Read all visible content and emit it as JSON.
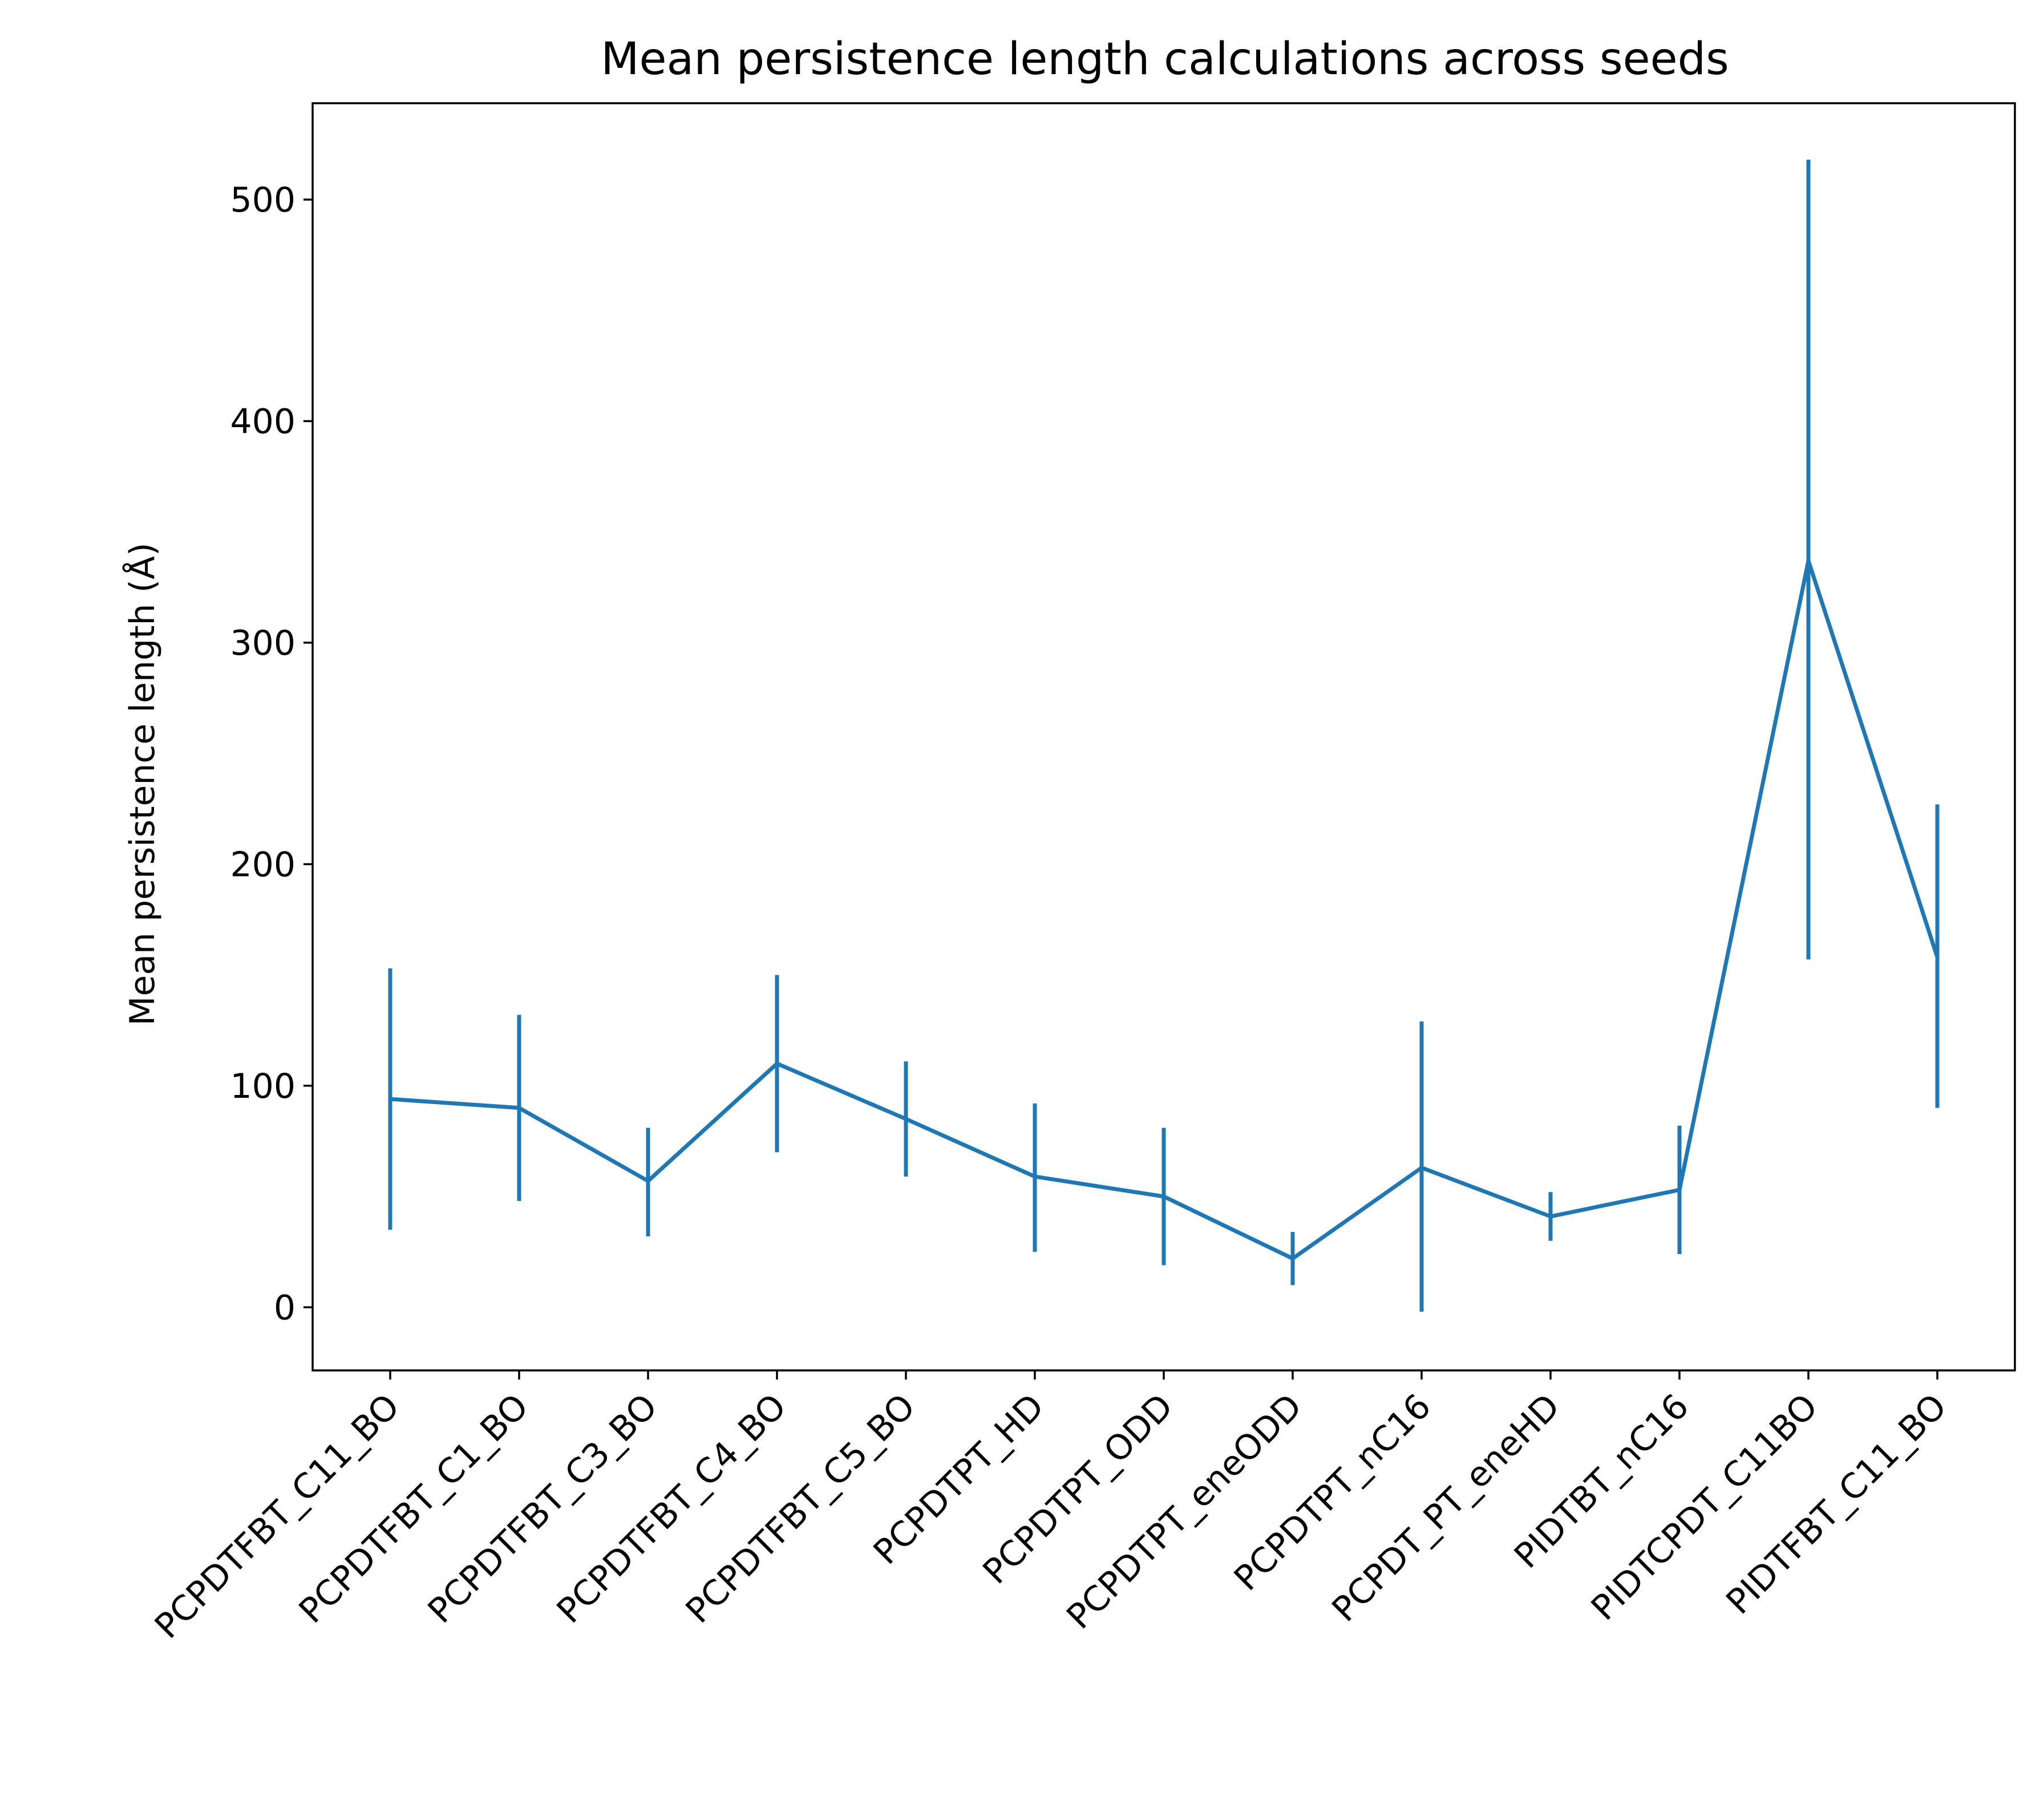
{
  "chart_data": {
    "type": "line",
    "title": "Mean persistence length calculations across seeds",
    "xlabel": "",
    "ylabel": "Mean persistence length (Å)",
    "ylim": [
      -28.5,
      543.5
    ],
    "yticks": [
      0,
      100,
      200,
      300,
      400,
      500
    ],
    "grid": false,
    "legend": "none",
    "line_color": "#1f77b4",
    "categories": [
      "PCPDTFBT_C11_BO",
      "PCPDTFBT_C1_BO",
      "PCPDTFBT_C3_BO",
      "PCPDTFBT_C4_BO",
      "PCPDTFBT_C5_BO",
      "PCPDTPT_HD",
      "PCPDTPT_ODD",
      "PCPDTPT_eneODD",
      "PCPDTPT_nC16",
      "PCPDT_PT_eneHD",
      "PIDTBT_nC16",
      "PIDTCPDT_C11BO",
      "PIDTFBT_C11_BO"
    ],
    "values": [
      94,
      90,
      57,
      110,
      85,
      59,
      50,
      22,
      63,
      41,
      53,
      337,
      158
    ],
    "error_low": [
      35,
      48,
      32,
      70,
      59,
      25,
      19,
      10,
      -2,
      30,
      24,
      157,
      90
    ],
    "error_high": [
      153,
      132,
      81,
      150,
      111,
      92,
      81,
      34,
      129,
      52,
      82,
      518,
      227
    ]
  }
}
